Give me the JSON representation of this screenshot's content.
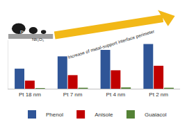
{
  "chart_data": {
    "type": "bar",
    "categories": [
      "Pt 18 nm",
      "Pt 7 nm",
      "Pt 4 nm",
      "Pt 2 nm"
    ],
    "series": [
      {
        "name": "Phenol",
        "color": "#2f5597",
        "values": [
          62,
          100,
          120,
          138
        ]
      },
      {
        "name": "Anisole",
        "color": "#c00000",
        "values": [
          25,
          42,
          57,
          71
        ]
      },
      {
        "name": "Guaiacol",
        "color": "#548235",
        "values": [
          2,
          3,
          4,
          3
        ]
      }
    ],
    "ylim": [
      0,
      150
    ],
    "tick_labels": "x",
    "grid": false,
    "legend": "bottom",
    "annotations": [
      {
        "text": "Increase of metal-support interface perimeter"
      },
      {
        "text": "Pt"
      },
      {
        "text": "Nb₂O₅"
      }
    ]
  }
}
